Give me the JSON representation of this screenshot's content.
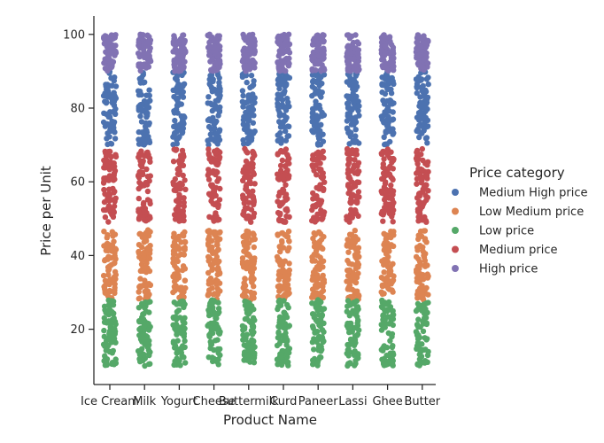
{
  "chart_data": {
    "type": "scatter",
    "subtype": "strip",
    "xlabel": "Product Name",
    "ylabel": "Price per Unit",
    "categories": [
      "Ice Cream",
      "Milk",
      "Yogurt",
      "Cheese",
      "Buttermilk",
      "Curd",
      "Paneer",
      "Lassi",
      "Ghee",
      "Butter"
    ],
    "ylim": [
      5,
      105
    ],
    "yticks": [
      20,
      40,
      60,
      80,
      100
    ],
    "grid": false,
    "legend": {
      "title": "Price category",
      "placement": "right",
      "entries": [
        "Medium High price",
        "Low Medium price",
        "Low price",
        "Medium price",
        "High price"
      ]
    },
    "series": [
      {
        "name": "Medium High price",
        "color": "#4c72b0",
        "range": [
          70,
          90
        ]
      },
      {
        "name": "Low Medium price",
        "color": "#dd8452",
        "range": [
          28,
          47
        ]
      },
      {
        "name": "Low price",
        "color": "#55a868",
        "range": [
          10,
          28
        ]
      },
      {
        "name": "Medium price",
        "color": "#c44e52",
        "range": [
          49,
          69
        ]
      },
      {
        "name": "High price",
        "color": "#8172b3",
        "range": [
          90,
          100
        ]
      }
    ],
    "points_per_category_per_series": 70
  }
}
